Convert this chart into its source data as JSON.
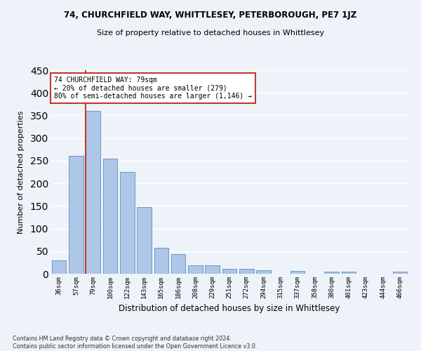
{
  "title1": "74, CHURCHFIELD WAY, WHITTLESEY, PETERBOROUGH, PE7 1JZ",
  "title2": "Size of property relative to detached houses in Whittlesey",
  "xlabel": "Distribution of detached houses by size in Whittlesey",
  "ylabel": "Number of detached properties",
  "categories": [
    "36sqm",
    "57sqm",
    "79sqm",
    "100sqm",
    "122sqm",
    "143sqm",
    "165sqm",
    "186sqm",
    "208sqm",
    "229sqm",
    "251sqm",
    "272sqm",
    "294sqm",
    "315sqm",
    "337sqm",
    "358sqm",
    "380sqm",
    "401sqm",
    "423sqm",
    "444sqm",
    "466sqm"
  ],
  "values": [
    30,
    260,
    360,
    255,
    225,
    148,
    57,
    43,
    18,
    18,
    11,
    11,
    7,
    0,
    6,
    0,
    4,
    4,
    0,
    0,
    4
  ],
  "bar_color": "#aec6e8",
  "bar_edgecolor": "#5b8db8",
  "highlight_index": 2,
  "vline_color": "#c0392b",
  "ylim": [
    0,
    450
  ],
  "yticks": [
    0,
    50,
    100,
    150,
    200,
    250,
    300,
    350,
    400,
    450
  ],
  "background_color": "#eef2f9",
  "grid_color": "#ffffff",
  "annotation_text": "74 CHURCHFIELD WAY: 79sqm\n← 20% of detached houses are smaller (279)\n80% of semi-detached houses are larger (1,146) →",
  "annotation_box_color": "#ffffff",
  "annotation_box_edgecolor": "#c0392b",
  "footer": "Contains HM Land Registry data © Crown copyright and database right 2024.\nContains public sector information licensed under the Open Government Licence v3.0."
}
